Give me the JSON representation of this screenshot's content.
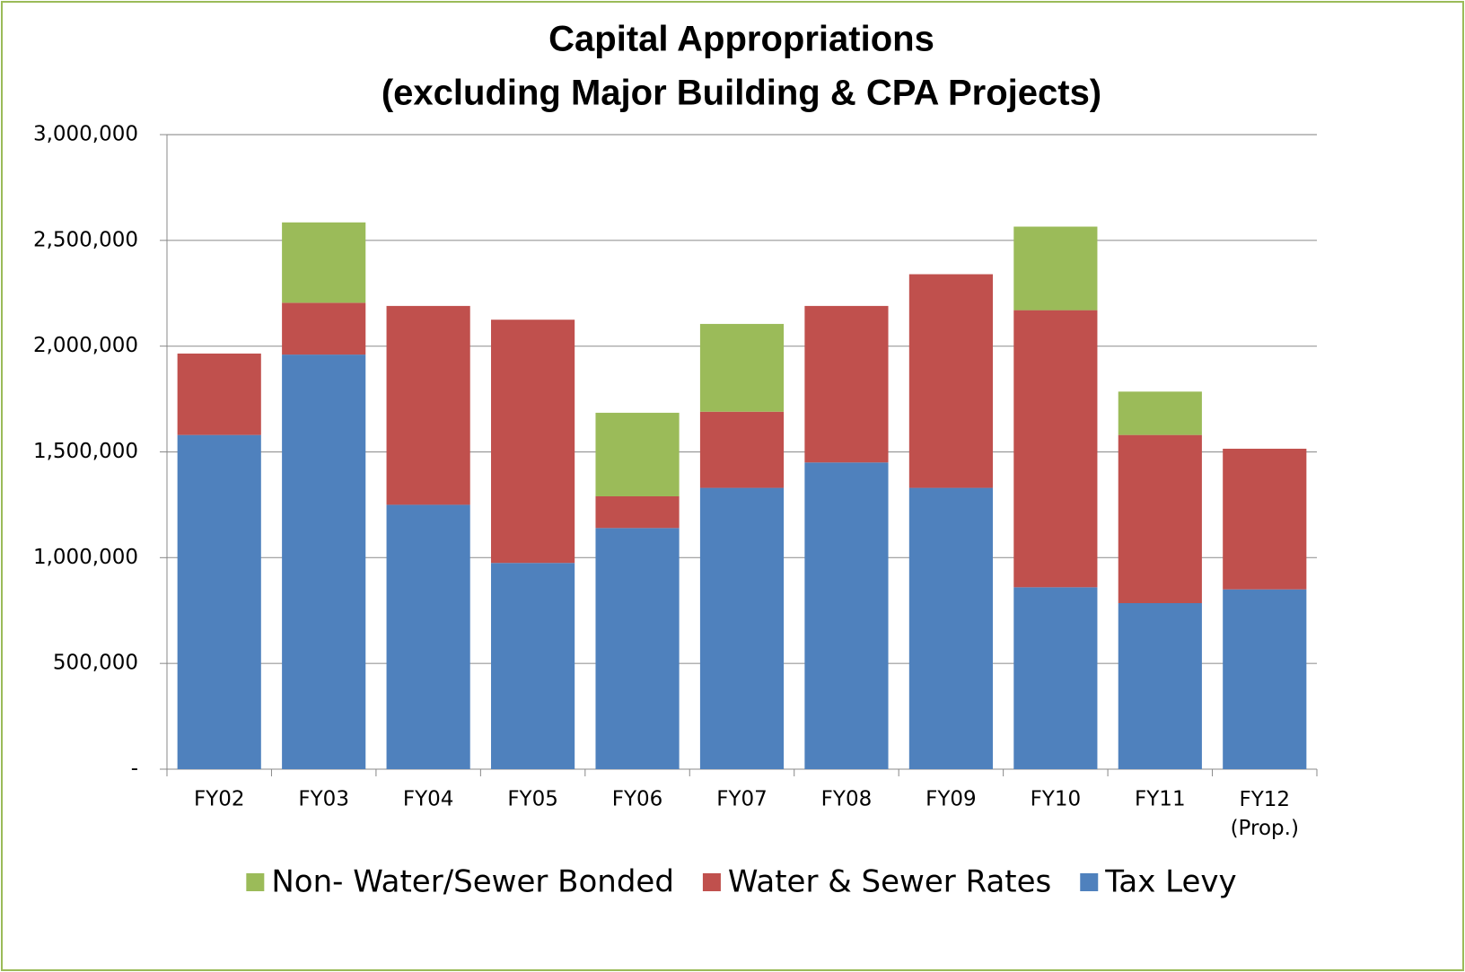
{
  "chart_data": {
    "type": "stacked_bar",
    "title": "Capital Appropriations",
    "subtitle": "(excluding Major Building & CPA Projects)",
    "categories": [
      "FY02",
      "FY03",
      "FY04",
      "FY05",
      "FY06",
      "FY07",
      "FY08",
      "FY09",
      "FY10",
      "FY11",
      "FY12 (Prop.)"
    ],
    "series": [
      {
        "name": "Tax Levy",
        "color": "#4f81bd",
        "values": [
          1580000,
          1960000,
          1250000,
          975000,
          1140000,
          1330000,
          1450000,
          1330000,
          860000,
          785000,
          850000
        ]
      },
      {
        "name": "Water & Sewer Rates",
        "color": "#c0504d",
        "values": [
          385000,
          245000,
          940000,
          1150000,
          150000,
          360000,
          740000,
          1010000,
          1310000,
          795000,
          665000
        ]
      },
      {
        "name": "Non- Water/Sewer Bonded",
        "color": "#9bbb59",
        "values": [
          null,
          380000,
          null,
          null,
          395000,
          415000,
          null,
          null,
          395000,
          205000,
          null
        ]
      }
    ],
    "ylim": [
      0,
      3000000
    ],
    "yticks": [
      {
        "value": 0,
        "label": "-"
      },
      {
        "value": 500000,
        "label": "500,000"
      },
      {
        "value": 1000000,
        "label": "1,000,000"
      },
      {
        "value": 1500000,
        "label": "1,500,000"
      },
      {
        "value": 2000000,
        "label": "2,000,000"
      },
      {
        "value": 2500000,
        "label": "2,500,000"
      },
      {
        "value": 3000000,
        "label": "3,000,000"
      }
    ],
    "grid": true,
    "legend": "bottom"
  }
}
